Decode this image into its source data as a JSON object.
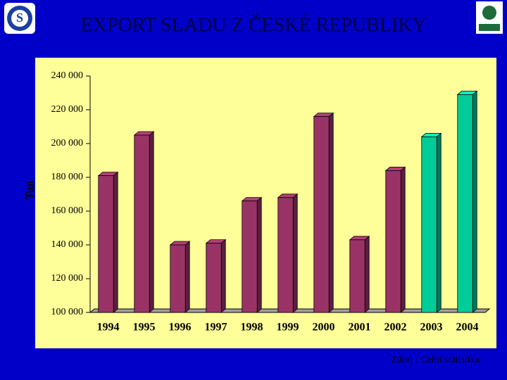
{
  "chart_data": {
    "type": "bar3d",
    "title": "EXPORT SLADU Z ČESKÉ REPUBLIKY",
    "y_label": "Tun",
    "source": "Zdroj : Celní statistika",
    "categories": [
      "1994",
      "1995",
      "1996",
      "1997",
      "1998",
      "1999",
      "2000",
      "2001",
      "2002",
      "2003",
      "2004"
    ],
    "values": [
      181000,
      205000,
      140000,
      141000,
      166000,
      168000,
      216000,
      143000,
      184000,
      204000,
      229000
    ],
    "colors": [
      "#993366",
      "#993366",
      "#993366",
      "#993366",
      "#993366",
      "#993366",
      "#993366",
      "#993366",
      "#993366",
      "#00cc99",
      "#00cc99"
    ],
    "ylim": [
      100000,
      240000
    ],
    "yticks": [
      {
        "value": 100000,
        "label": "100 000"
      },
      {
        "value": 120000,
        "label": "120 000"
      },
      {
        "value": 140000,
        "label": "140 000"
      },
      {
        "value": 160000,
        "label": "160 000"
      },
      {
        "value": 180000,
        "label": "180 000"
      },
      {
        "value": 200000,
        "label": "200 000"
      },
      {
        "value": 220000,
        "label": "220 000"
      },
      {
        "value": 240000,
        "label": "240 000"
      }
    ],
    "grid": false
  }
}
